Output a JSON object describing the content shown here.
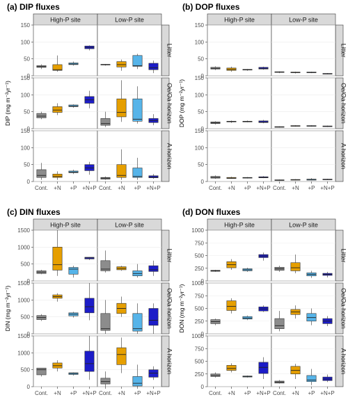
{
  "chart_data": [
    {
      "type": "box",
      "title": "(a) DIP fluxes",
      "ylabel": "DIP (mg m⁻²yr⁻¹)",
      "ylim": [
        0,
        150
      ],
      "yticks": [
        0,
        50,
        100,
        150
      ],
      "categories": [
        "Cont.",
        "+N",
        "+P",
        "+N+P"
      ],
      "columns": [
        "High-P site",
        "Low-P site"
      ],
      "rows": [
        "Litter",
        "Oe/Oa horizon",
        "A horizon"
      ],
      "colors": [
        "#8c8c8c",
        "#e69f00",
        "#56b4e9",
        "#1c1cc8"
      ],
      "panels": [
        [
          [
            [
              20,
              25,
              27,
              30,
              34
            ],
            [
              12,
              16,
              18,
              33,
              60
            ],
            [
              30,
              33,
              35,
              38,
              42
            ],
            [
              75,
              80,
              84,
              88,
              90
            ]
          ],
          [
            [
              30,
              32,
              33,
              34,
              35
            ],
            [
              15,
              26,
              33,
              42,
              48
            ],
            [
              20,
              28,
              30,
              60,
              65
            ],
            [
              8,
              18,
              24,
              37,
              45
            ]
          ]
        ],
        [
          [
            [
              28,
              32,
              37,
              45,
              50
            ],
            [
              40,
              48,
              55,
              65,
              75
            ],
            [
              62,
              65,
              67,
              70,
              72
            ],
            [
              60,
              75,
              85,
              95,
              112
            ]
          ],
          [
            [
              5,
              10,
              15,
              30,
              50
            ],
            [
              20,
              35,
              48,
              88,
              143
            ],
            [
              15,
              22,
              28,
              88,
              125
            ],
            [
              10,
              18,
              24,
              30,
              43
            ]
          ]
        ],
        [
          [
            [
              5,
              12,
              18,
              35,
              55
            ],
            [
              5,
              12,
              15,
              22,
              30
            ],
            [
              22,
              26,
              28,
              31,
              35
            ],
            [
              20,
              32,
              40,
              50,
              58
            ]
          ],
          [
            [
              5,
              7,
              10,
              12,
              15
            ],
            [
              5,
              12,
              18,
              50,
              95
            ],
            [
              5,
              12,
              15,
              40,
              70
            ],
            [
              8,
              11,
              13,
              17,
              22
            ]
          ]
        ]
      ]
    },
    {
      "type": "box",
      "title": "(b) DOP fluxes",
      "ylabel": "DOP (mg m⁻²yr⁻¹)",
      "ylim": [
        0,
        150
      ],
      "yticks": [
        0,
        50,
        100,
        150
      ],
      "categories": [
        "Cont.",
        "+N",
        "+P",
        "+N+P"
      ],
      "columns": [
        "High-P site",
        "Low-P site"
      ],
      "rows": [
        "Litter",
        "Oe/Oa horizon",
        "A horizon"
      ],
      "colors": [
        "#8c8c8c",
        "#e69f00",
        "#56b4e9",
        "#1c1cc8"
      ],
      "panels": [
        [
          [
            [
              17,
              20,
              22,
              25,
              28
            ],
            [
              12,
              16,
              19,
              23,
              27
            ],
            [
              15,
              17,
              18,
              19,
              20
            ],
            [
              18,
              20,
              22,
              25,
              27
            ]
          ],
          [
            [
              8,
              10,
              11,
              12,
              13
            ],
            [
              7,
              9,
              10,
              11,
              12
            ],
            [
              8,
              9,
              10,
              11,
              12
            ],
            [
              4,
              5,
              6,
              7,
              8
            ]
          ]
        ],
        [
          [
            [
              12,
              15,
              17,
              20,
              22
            ],
            [
              17,
              20,
              21,
              22,
              24
            ],
            [
              19,
              20,
              21,
              22,
              24
            ],
            [
              16,
              18,
              20,
              23,
              26
            ]
          ],
          [
            [
              3,
              4,
              5,
              6,
              7
            ],
            [
              6,
              7,
              8,
              9,
              10
            ],
            [
              6,
              7,
              8,
              9,
              10
            ],
            [
              5,
              6,
              7,
              8,
              9
            ]
          ]
        ],
        [
          [
            [
              8,
              10,
              12,
              15,
              18
            ],
            [
              8,
              9,
              10,
              12,
              14
            ],
            [
              9,
              10,
              11,
              12,
              13
            ],
            [
              10,
              11,
              12,
              14,
              16
            ]
          ],
          [
            [
              2,
              3,
              4,
              5,
              6
            ],
            [
              3,
              4,
              5,
              6,
              7
            ],
            [
              3,
              4,
              6,
              7,
              10
            ],
            [
              4,
              5,
              6,
              7,
              8
            ]
          ]
        ]
      ]
    },
    {
      "type": "box",
      "title": "(c) DIN fluxes",
      "ylabel": "DIN (mg m⁻²yr⁻¹)",
      "ylim": [
        0,
        1500
      ],
      "yticks": [
        0,
        500,
        1000,
        1500
      ],
      "categories": [
        "Cont.",
        "+N",
        "+P",
        "+N+P"
      ],
      "columns": [
        "High-P site",
        "Low-P site"
      ],
      "rows": [
        "Litter",
        "Oe/Oa horizon",
        "A horizon"
      ],
      "colors": [
        "#8c8c8c",
        "#e69f00",
        "#56b4e9",
        "#1c1cc8"
      ],
      "panels": [
        [
          [
            [
              200,
              220,
              260,
              300,
              330
            ],
            [
              150,
              320,
              480,
              1000,
              1500
            ],
            [
              100,
              200,
              350,
              400,
              450
            ],
            [
              620,
              650,
              680,
              700,
              710
            ]
          ],
          [
            [
              250,
              300,
              350,
              600,
              900
            ],
            [
              300,
              330,
              370,
              420,
              450
            ],
            [
              100,
              150,
              220,
              300,
              500
            ],
            [
              150,
              280,
              330,
              450,
              600
            ]
          ]
        ],
        [
          [
            [
              380,
              420,
              480,
              540,
              580
            ],
            [
              950,
              1050,
              1100,
              1150,
              1200
            ],
            [
              480,
              530,
              580,
              620,
              650
            ],
            [
              400,
              620,
              800,
              1050,
              1500
            ]
          ],
          [
            [
              0,
              100,
              150,
              600,
              1000
            ],
            [
              500,
              600,
              750,
              900,
              1100
            ],
            [
              0,
              80,
              150,
              600,
              900
            ],
            [
              0,
              250,
              400,
              750,
              900
            ]
          ]
        ],
        [
          [
            [
              300,
              350,
              500,
              550,
              550
            ],
            [
              450,
              550,
              620,
              700,
              780
            ],
            [
              330,
              360,
              390,
              410,
              420
            ],
            [
              200,
              450,
              680,
              1050,
              1500
            ]
          ],
          [
            [
              0,
              80,
              150,
              250,
              450
            ],
            [
              400,
              650,
              950,
              1150,
              1450
            ],
            [
              0,
              20,
              100,
              300,
              650
            ],
            [
              200,
              280,
              400,
              500,
              600
            ]
          ]
        ]
      ]
    },
    {
      "type": "box",
      "title": "(d) DON fluxes",
      "ylabel": "DON (mg m⁻²yr⁻¹)",
      "ylim": [
        0,
        1000
      ],
      "yticks": [
        0,
        250,
        500,
        750,
        1000
      ],
      "categories": [
        "Cont.",
        "+N",
        "+P",
        "+N+P"
      ],
      "columns": [
        "High-P site",
        "Low-P site"
      ],
      "rows": [
        "Litter",
        "Oe/Oa horizon",
        "A horizon"
      ],
      "colors": [
        "#8c8c8c",
        "#e69f00",
        "#56b4e9",
        "#1c1cc8"
      ],
      "panels": [
        [
          [
            [
              180,
              190,
              200,
              210,
              220
            ],
            [
              220,
              260,
              320,
              380,
              430
            ],
            [
              180,
              200,
              220,
              240,
              260
            ],
            [
              400,
              460,
              490,
              520,
              560
            ]
          ],
          [
            [
              180,
              210,
              240,
              270,
              300
            ],
            [
              150,
              200,
              260,
              360,
              520
            ],
            [
              60,
              100,
              130,
              160,
              200
            ],
            [
              70,
              110,
              130,
              150,
              180
            ]
          ]
        ],
        [
          [
            [
              170,
              200,
              240,
              280,
              300
            ],
            [
              400,
              460,
              540,
              650,
              700
            ],
            [
              270,
              290,
              310,
              340,
              360
            ],
            [
              430,
              450,
              490,
              530,
              560
            ]
          ],
          [
            [
              50,
              100,
              160,
              300,
              450
            ],
            [
              300,
              380,
              430,
              480,
              560
            ],
            [
              170,
              250,
              320,
              400,
              500
            ],
            [
              150,
              200,
              250,
              300,
              350
            ]
          ]
        ],
        [
          [
            [
              180,
              200,
              220,
              250,
              280
            ],
            [
              280,
              320,
              360,
              420,
              460
            ],
            [
              180,
              190,
              200,
              210,
              220
            ],
            [
              150,
              260,
              380,
              480,
              580
            ]
          ],
          [
            [
              60,
              70,
              90,
              110,
              130
            ],
            [
              150,
              250,
              320,
              400,
              450
            ],
            [
              30,
              100,
              130,
              220,
              350
            ],
            [
              90,
              120,
              150,
              190,
              240
            ]
          ]
        ]
      ]
    }
  ]
}
